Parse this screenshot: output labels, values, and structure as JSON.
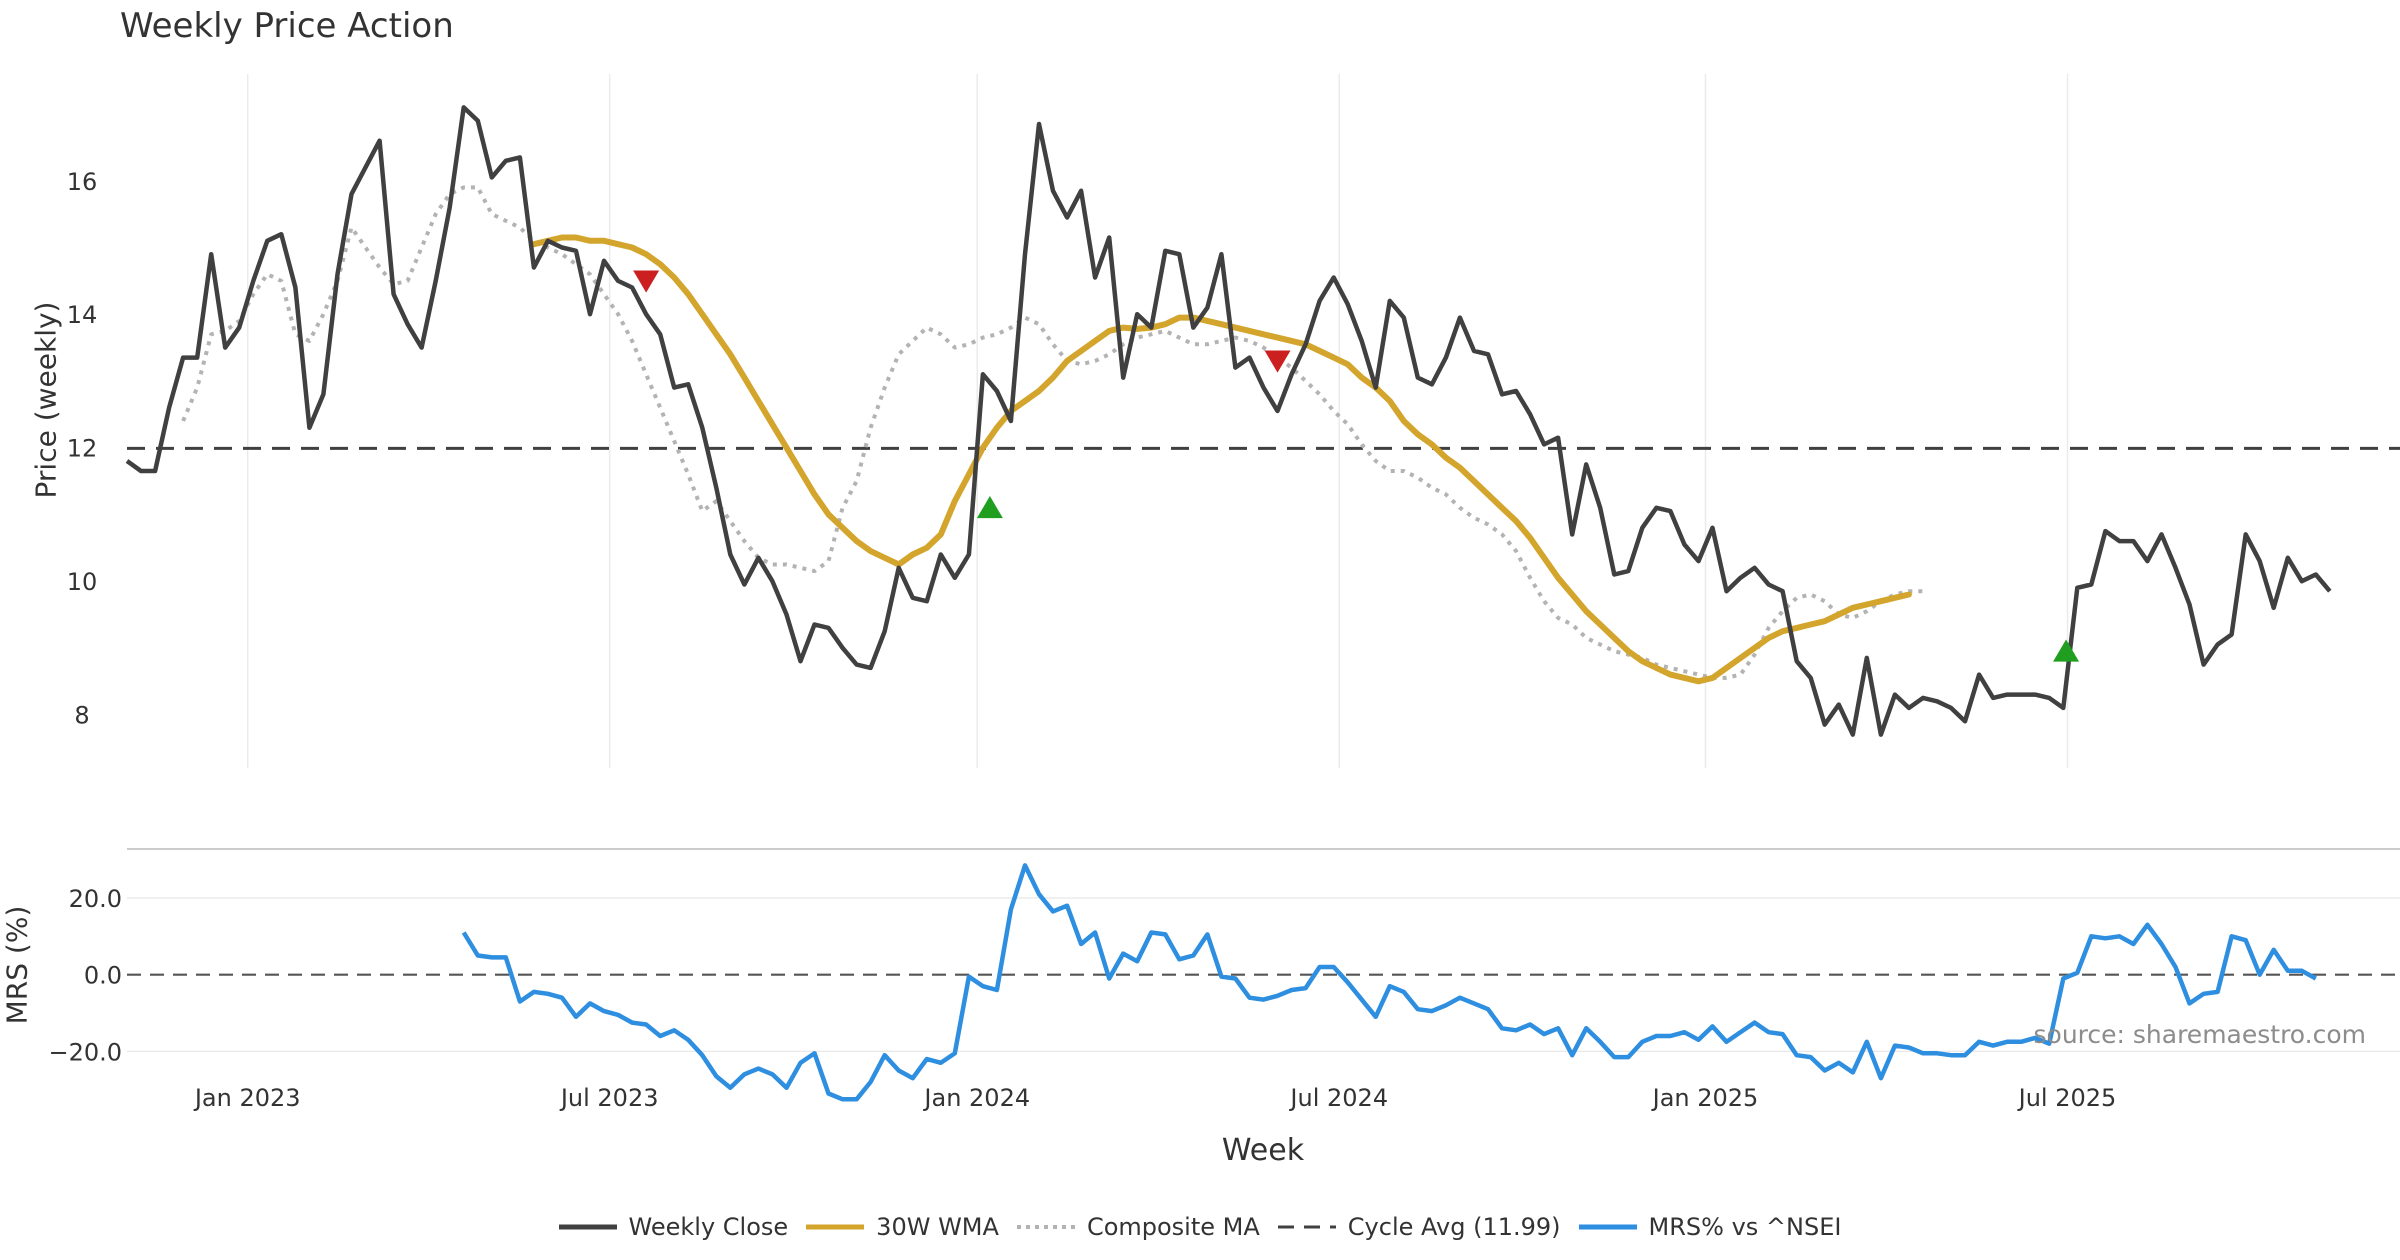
{
  "chart_data": [
    {
      "type": "line",
      "title": "Weekly Price Action",
      "ylabel": "Price (weekly)",
      "xlabel": "Week",
      "ylim": [
        7.2,
        17.6
      ],
      "yticks": [
        8,
        10,
        12,
        14,
        16
      ],
      "ytick_labels": [
        "8",
        "10",
        "12",
        "14",
        "16"
      ],
      "x_start": "2022-09-18",
      "x_step_weeks": 1,
      "xlim": [
        0,
        162
      ],
      "xticks": [
        {
          "x": 8.6,
          "label": "Jan 2023"
        },
        {
          "x": 34.4,
          "label": "Jul 2023"
        },
        {
          "x": 60.6,
          "label": "Jan 2024"
        },
        {
          "x": 86.4,
          "label": "Jul 2024"
        },
        {
          "x": 112.5,
          "label": "Jan 2025"
        },
        {
          "x": 138.3,
          "label": "Jul 2025"
        }
      ],
      "series": [
        {
          "name": "Weekly Close",
          "color": "#404040",
          "start": 0,
          "values": [
            11.8,
            11.65,
            11.65,
            12.6,
            13.35,
            13.35,
            14.9,
            13.5,
            13.8,
            14.5,
            15.1,
            15.2,
            14.4,
            12.3,
            12.8,
            14.6,
            15.8,
            16.2,
            16.6,
            14.3,
            13.85,
            13.5,
            14.5,
            15.6,
            17.1,
            16.9,
            16.05,
            16.3,
            16.35,
            14.7,
            15.1,
            15.0,
            14.95,
            14.0,
            14.8,
            14.5,
            14.4,
            14.0,
            13.7,
            12.9,
            12.95,
            12.3,
            11.4,
            10.4,
            9.95,
            10.35,
            10.0,
            9.5,
            8.8,
            9.35,
            9.3,
            9.0,
            8.75,
            8.7,
            9.25,
            10.2,
            9.75,
            9.7,
            10.4,
            10.05,
            10.4,
            13.1,
            12.85,
            12.4,
            14.9,
            16.85,
            15.85,
            15.45,
            15.85,
            14.55,
            15.15,
            13.05,
            14.0,
            13.8,
            14.95,
            14.9,
            13.8,
            14.1,
            14.9,
            13.2,
            13.35,
            12.9,
            12.55,
            13.1,
            13.55,
            14.2,
            14.55,
            14.15,
            13.6,
            12.9,
            14.2,
            13.95,
            13.05,
            12.95,
            13.35,
            13.95,
            13.45,
            13.4,
            12.8,
            12.85,
            12.5,
            12.05,
            12.15,
            10.7,
            11.75,
            11.1,
            10.1,
            10.15,
            10.8,
            11.1,
            11.05,
            10.55,
            10.3,
            10.8,
            9.85,
            10.05,
            10.2,
            9.95,
            9.85,
            8.8,
            8.55,
            7.85,
            8.15,
            7.7,
            8.85,
            7.7,
            8.3,
            8.1,
            8.25,
            8.2,
            8.1,
            7.9,
            8.6,
            8.25,
            8.3,
            8.3,
            8.3,
            8.25,
            8.1,
            9.9,
            9.95,
            10.75,
            10.6,
            10.6,
            10.3,
            10.7,
            10.2,
            9.65,
            8.75,
            9.05,
            9.2,
            10.7,
            10.3,
            9.6,
            10.35,
            10.0,
            10.1,
            9.85
          ]
        },
        {
          "name": "30W WMA",
          "color": "#d4a52c",
          "start": 29,
          "values": [
            15.05,
            15.1,
            15.15,
            15.15,
            15.1,
            15.1,
            15.05,
            15.0,
            14.9,
            14.75,
            14.55,
            14.3,
            14.0,
            13.7,
            13.4,
            13.05,
            12.7,
            12.35,
            12.0,
            11.65,
            11.3,
            11.0,
            10.8,
            10.6,
            10.45,
            10.35,
            10.25,
            10.4,
            10.5,
            10.7,
            11.2,
            11.6,
            12.0,
            12.3,
            12.55,
            12.7,
            12.85,
            13.05,
            13.3,
            13.45,
            13.6,
            13.75,
            13.8,
            13.78,
            13.8,
            13.85,
            13.95,
            13.95,
            13.9,
            13.85,
            13.8,
            13.75,
            13.7,
            13.65,
            13.6,
            13.55,
            13.45,
            13.35,
            13.25,
            13.05,
            12.9,
            12.7,
            12.4,
            12.2,
            12.05,
            11.85,
            11.7,
            11.5,
            11.3,
            11.1,
            10.9,
            10.65,
            10.35,
            10.05,
            9.8,
            9.55,
            9.35,
            9.15,
            8.95,
            8.8,
            8.7,
            8.6,
            8.55,
            8.5,
            8.55,
            8.7,
            8.85,
            9.0,
            9.15,
            9.25,
            9.3,
            9.35,
            9.4,
            9.5,
            9.6,
            9.65,
            9.7,
            9.75,
            9.8
          ]
        },
        {
          "name": "Composite MA",
          "color": "#b3b3b3",
          "start": 4,
          "values": [
            12.4,
            12.9,
            13.7,
            13.75,
            13.9,
            14.3,
            14.6,
            14.5,
            13.7,
            13.6,
            14.0,
            14.5,
            15.3,
            15.0,
            14.7,
            14.45,
            14.5,
            15.0,
            15.5,
            15.8,
            15.9,
            15.9,
            15.5,
            15.4,
            15.3,
            15.1,
            15.0,
            14.9,
            14.75,
            14.6,
            14.3,
            14.0,
            13.6,
            13.1,
            12.6,
            12.1,
            11.6,
            11.05,
            11.2,
            10.9,
            10.6,
            10.35,
            10.25,
            10.25,
            10.2,
            10.15,
            10.3,
            11.1,
            11.5,
            12.3,
            12.9,
            13.4,
            13.6,
            13.8,
            13.7,
            13.5,
            13.55,
            13.65,
            13.7,
            13.8,
            13.95,
            13.85,
            13.55,
            13.3,
            13.25,
            13.3,
            13.4,
            13.55,
            13.65,
            13.7,
            13.75,
            13.65,
            13.55,
            13.55,
            13.6,
            13.65,
            13.6,
            13.5,
            13.35,
            13.2,
            13.0,
            12.8,
            12.55,
            12.35,
            12.05,
            11.8,
            11.65,
            11.65,
            11.55,
            11.4,
            11.3,
            11.1,
            10.95,
            10.85,
            10.7,
            10.45,
            10.05,
            9.7,
            9.45,
            9.35,
            9.15,
            9.05,
            8.95,
            8.9,
            8.85,
            8.75,
            8.7,
            8.65,
            8.6,
            8.55,
            8.55,
            8.6,
            8.9,
            9.3,
            9.55,
            9.75,
            9.8,
            9.7,
            9.5,
            9.45,
            9.55,
            9.7,
            9.8,
            9.85,
            9.85
          ]
        },
        {
          "name": "Cycle Avg (11.99)",
          "color": "#404040",
          "constant": 11.99
        }
      ],
      "markers": [
        {
          "type": "sell",
          "shape": "down-triangle",
          "color": "#cc1f1f",
          "x": 37,
          "y": 14.5
        },
        {
          "type": "buy",
          "shape": "up-triangle",
          "color": "#1f9e1f",
          "x": 61.5,
          "y": 11.1
        },
        {
          "type": "sell",
          "shape": "down-triangle",
          "color": "#cc1f1f",
          "x": 82,
          "y": 13.3
        },
        {
          "type": "buy",
          "shape": "up-triangle",
          "color": "#1f9e1f",
          "x": 138.2,
          "y": 8.95
        }
      ]
    },
    {
      "type": "line",
      "ylabel": "MRS (%)",
      "ylim": [
        -28,
        32
      ],
      "yticks": [
        -20,
        0,
        20
      ],
      "ytick_labels": [
        "−20.0",
        "0.0",
        "20.0"
      ],
      "zero_line": 0,
      "series": [
        {
          "name": "MRS% vs ^NSEI",
          "color": "#2e8ee0",
          "start": 24,
          "values": [
            11,
            5,
            4.5,
            4.5,
            -7,
            -4.5,
            -5,
            -6,
            -11,
            -7.5,
            -9.5,
            -10.5,
            -12.5,
            -13,
            -16,
            -14.5,
            -17,
            -21,
            -26.5,
            -29.5,
            -26,
            -24.5,
            -26,
            -29.5,
            -23,
            -20.5,
            -31,
            -32.5,
            -32.5,
            -28,
            -21,
            -25,
            -27,
            -22,
            -23,
            -20.5,
            -0.5,
            -3,
            -4,
            17,
            28.5,
            21,
            16.5,
            18,
            8,
            11,
            -1,
            5.5,
            3.5,
            11,
            10.5,
            4,
            5,
            10.5,
            -0.5,
            -1,
            -6,
            -6.5,
            -5.5,
            -4,
            -3.5,
            2,
            2,
            -2,
            -6.5,
            -11,
            -3,
            -4.5,
            -9,
            -9.5,
            -8,
            -6,
            -7.5,
            -9,
            -14,
            -14.5,
            -13,
            -15.5,
            -14,
            -21,
            -14,
            -17.5,
            -21.5,
            -21.5,
            -17.5,
            -16,
            -16,
            -15,
            -17,
            -13.5,
            -17.5,
            -15,
            -12.5,
            -15,
            -15.5,
            -21,
            -21.5,
            -25,
            -23,
            -25.5,
            -17.5,
            -27,
            -18.5,
            -19,
            -20.5,
            -20.5,
            -21,
            -21,
            -17.5,
            -18.5,
            -17.5,
            -17.5,
            -16.5,
            -18,
            -1,
            0.5,
            10,
            9.5,
            10,
            8,
            13,
            8,
            2,
            -7.5,
            -5,
            -4.5,
            10,
            9,
            0,
            6.5,
            1,
            1,
            -1
          ]
        }
      ]
    }
  ],
  "texts": {
    "title": "Weekly Price Action",
    "ylabel_main": "Price (weekly)",
    "ylabel_sub": "MRS (%)",
    "xlabel": "Week",
    "source": "source: sharemaestro.com"
  },
  "legend": [
    {
      "label": "Weekly Close",
      "color": "#404040",
      "style": "solid"
    },
    {
      "label": "30W WMA",
      "color": "#d4a52c",
      "style": "solid"
    },
    {
      "label": "Composite MA",
      "color": "#b3b3b3",
      "style": "dotted"
    },
    {
      "label": "Cycle Avg (11.99)",
      "color": "#404040",
      "style": "dashed"
    },
    {
      "label": "MRS% vs ^NSEI",
      "color": "#2e8ee0",
      "style": "solid"
    }
  ]
}
